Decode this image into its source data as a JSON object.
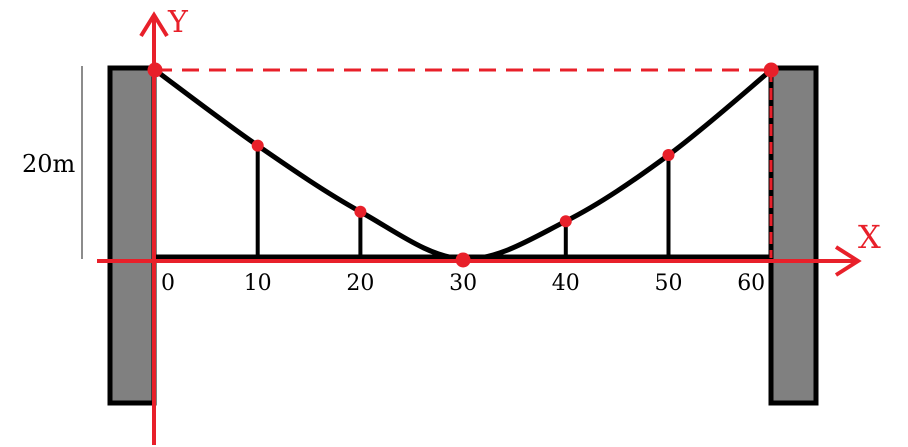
{
  "labels": {
    "y_axis": "Y",
    "x_axis": "X",
    "height": "20m"
  },
  "x_ticks": [
    "0",
    "10",
    "20",
    "30",
    "40",
    "50",
    "60"
  ],
  "points": [
    {
      "x": 0,
      "y": 20
    },
    {
      "x": 10,
      "y": 12
    },
    {
      "x": 20,
      "y": 5
    },
    {
      "x": 30,
      "y": 0
    },
    {
      "x": 40,
      "y": 4
    },
    {
      "x": 50,
      "y": 11
    },
    {
      "x": 60,
      "y": 20
    }
  ],
  "colors": {
    "axis": "#e8202a",
    "cable": "#000000",
    "tower_fill": "#808080",
    "tower_border": "#000000",
    "dimension_line": "#8c8c8c"
  }
}
